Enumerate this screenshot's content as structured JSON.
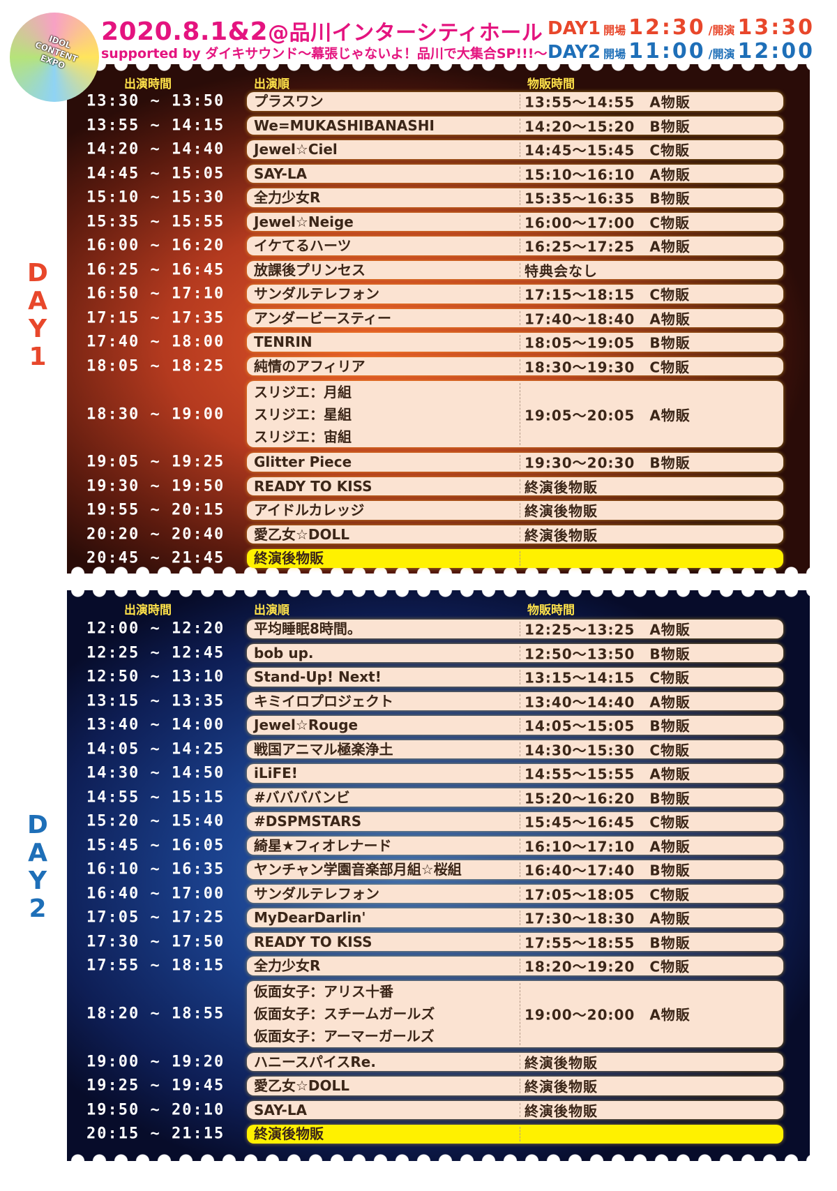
{
  "logo": {
    "text": "IDOL CONTENT EXPO"
  },
  "header": {
    "date": "2020.8.1&2",
    "venue": "@品川インターシティホール",
    "subtitle": "supported by ダイキサウンド〜幕張じゃないよ！品川で大集合SP!!!〜",
    "day1": {
      "label": "DAY1",
      "open_label": "開場",
      "open": "12:30",
      "start_label": "/開演",
      "start": "13:30"
    },
    "day2": {
      "label": "DAY2",
      "open_label": "開場",
      "open": "11:00",
      "start_label": "/開演",
      "start": "12:00"
    }
  },
  "columns": {
    "time": "出演時間",
    "order": "出演順",
    "sales": "物販時間"
  },
  "colors": {
    "day1": "#e8472b",
    "day2": "#1e6fb8",
    "title": "#e4147f",
    "pill": "#fbe3d2",
    "final": "#fff100"
  },
  "days": [
    {
      "label": "DAY1",
      "rows": [
        {
          "time": "13:30 ~ 13:50",
          "acts": [
            "プラスワン"
          ],
          "sales": "13:55〜14:55　A物販"
        },
        {
          "time": "13:55 ~ 14:15",
          "acts": [
            "We=MUKASHIBANASHI"
          ],
          "sales": "14:20〜15:20　B物販"
        },
        {
          "time": "14:20 ~ 14:40",
          "acts": [
            "Jewel☆Ciel"
          ],
          "sales": "14:45〜15:45　C物販"
        },
        {
          "time": "14:45 ~ 15:05",
          "acts": [
            "SAY-LA"
          ],
          "sales": "15:10〜16:10　A物販"
        },
        {
          "time": "15:10 ~ 15:30",
          "acts": [
            "全力少女R"
          ],
          "sales": "15:35〜16:35　B物販"
        },
        {
          "time": "15:35 ~ 15:55",
          "acts": [
            "Jewel☆Neige"
          ],
          "sales": "16:00〜17:00　C物販"
        },
        {
          "time": "16:00 ~ 16:20",
          "acts": [
            "イケてるハーツ"
          ],
          "sales": "16:25〜17:25　A物販"
        },
        {
          "time": "16:25 ~ 16:45",
          "acts": [
            "放課後プリンセス"
          ],
          "sales": "特典会なし"
        },
        {
          "time": "16:50 ~ 17:10",
          "acts": [
            "サンダルテレフォン"
          ],
          "sales": "17:15〜18:15　C物販"
        },
        {
          "time": "17:15 ~ 17:35",
          "acts": [
            "アンダービースティー"
          ],
          "sales": "17:40〜18:40　A物販"
        },
        {
          "time": "17:40 ~ 18:00",
          "acts": [
            "TENRIN"
          ],
          "sales": "18:05〜19:05　B物販"
        },
        {
          "time": "18:05 ~ 18:25",
          "acts": [
            "純情のアフィリア"
          ],
          "sales": "18:30〜19:30　C物販"
        },
        {
          "time": "18:30 ~ 19:00",
          "acts": [
            "スリジエ：月組",
            "スリジエ：星組",
            "スリジエ：宙組"
          ],
          "sales": "19:05〜20:05　A物販"
        },
        {
          "time": "19:05 ~ 19:25",
          "acts": [
            "Glitter Piece"
          ],
          "sales": "19:30〜20:30　B物販"
        },
        {
          "time": "19:30 ~ 19:50",
          "acts": [
            "READY TO KISS"
          ],
          "sales": "終演後物販"
        },
        {
          "time": "19:55 ~ 20:15",
          "acts": [
            "アイドルカレッジ"
          ],
          "sales": "終演後物販"
        },
        {
          "time": "20:20 ~ 20:40",
          "acts": [
            "愛乙女☆DOLL"
          ],
          "sales": "終演後物販"
        },
        {
          "time": "20:45 ~ 21:45",
          "acts": [
            "終演後物販"
          ],
          "sales": "",
          "final": true
        }
      ]
    },
    {
      "label": "DAY2",
      "rows": [
        {
          "time": "12:00 ~ 12:20",
          "acts": [
            "平均睡眠8時間。"
          ],
          "sales": "12:25〜13:25　A物販"
        },
        {
          "time": "12:25 ~ 12:45",
          "acts": [
            "bob up."
          ],
          "sales": "12:50〜13:50　B物販"
        },
        {
          "time": "12:50 ~ 13:10",
          "acts": [
            "Stand-Up! Next!"
          ],
          "sales": "13:15〜14:15　C物販"
        },
        {
          "time": "13:15 ~ 13:35",
          "acts": [
            "キミイロプロジェクト"
          ],
          "sales": "13:40〜14:40　A物販"
        },
        {
          "time": "13:40 ~ 14:00",
          "acts": [
            "Jewel☆Rouge"
          ],
          "sales": "14:05〜15:05　B物販"
        },
        {
          "time": "14:05 ~ 14:25",
          "acts": [
            "戦国アニマル極楽浄土"
          ],
          "sales": "14:30〜15:30　C物販"
        },
        {
          "time": "14:30 ~ 14:50",
          "acts": [
            "iLiFE!"
          ],
          "sales": "14:55〜15:55　A物販"
        },
        {
          "time": "14:55 ~ 15:15",
          "acts": [
            "#ババババンビ"
          ],
          "sales": "15:20〜16:20　B物販"
        },
        {
          "time": "15:20 ~ 15:40",
          "acts": [
            "#DSPMSTARS"
          ],
          "sales": "15:45〜16:45　C物販"
        },
        {
          "time": "15:45 ~ 16:05",
          "acts": [
            "綺星★フィオレナード"
          ],
          "sales": "16:10〜17:10　A物販"
        },
        {
          "time": "16:10 ~ 16:35",
          "acts": [
            "ヤンチャン学園音楽部月組☆桜組"
          ],
          "sales": "16:40〜17:40　B物販"
        },
        {
          "time": "16:40 ~ 17:00",
          "acts": [
            "サンダルテレフォン"
          ],
          "sales": "17:05〜18:05　C物販"
        },
        {
          "time": "17:05 ~ 17:25",
          "acts": [
            "MyDearDarlin'"
          ],
          "sales": "17:30〜18:30　A物販"
        },
        {
          "time": "17:30 ~ 17:50",
          "acts": [
            "READY TO KISS"
          ],
          "sales": "17:55〜18:55　B物販"
        },
        {
          "time": "17:55 ~ 18:15",
          "acts": [
            "全力少女R"
          ],
          "sales": "18:20〜19:20　C物販"
        },
        {
          "time": "18:20 ~ 18:55",
          "acts": [
            "仮面女子：アリス十番",
            "仮面女子：スチームガールズ",
            "仮面女子：アーマーガールズ"
          ],
          "sales": "19:00〜20:00　A物販"
        },
        {
          "time": "19:00 ~ 19:20",
          "acts": [
            "ハニースパイスRe."
          ],
          "sales": "終演後物販"
        },
        {
          "time": "19:25 ~ 19:45",
          "acts": [
            "愛乙女☆DOLL"
          ],
          "sales": "終演後物販"
        },
        {
          "time": "19:50 ~ 20:10",
          "acts": [
            "SAY-LA"
          ],
          "sales": "終演後物販"
        },
        {
          "time": "20:15 ~ 21:15",
          "acts": [
            "終演後物販"
          ],
          "sales": "",
          "final": true
        }
      ]
    }
  ]
}
